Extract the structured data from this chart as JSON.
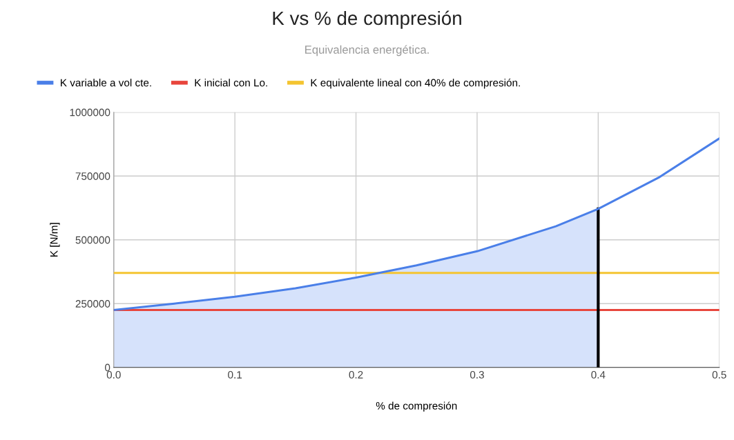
{
  "chart_data": {
    "type": "line",
    "title": "K vs % de compresión",
    "subtitle": "Equivalencia energética.",
    "xlabel": "% de compresión",
    "ylabel": "K [N/m]",
    "series": [
      {
        "name": "K variable a vol cte.",
        "color": "#4a7fe8",
        "x": [
          0,
          0.05,
          0.1,
          0.15,
          0.2,
          0.25,
          0.3,
          0.365,
          0.4,
          0.45,
          0.5
        ],
        "values": [
          225000,
          250000,
          277000,
          310000,
          352000,
          400000,
          455000,
          553000,
          621000,
          744000,
          897000
        ]
      },
      {
        "type": "area",
        "color": "#d6e2fb",
        "x": [
          0,
          0.05,
          0.1,
          0.15,
          0.2,
          0.25,
          0.3,
          0.365,
          0.4
        ],
        "values": [
          225000,
          250000,
          277000,
          310000,
          352000,
          400000,
          455000,
          553000,
          621000
        ]
      },
      {
        "name": "K inicial con Lo.",
        "color": "#e8453c",
        "x": [
          0,
          0.5
        ],
        "values": [
          225000,
          225000
        ]
      },
      {
        "name": "K equivalente lineal con 40% de compresión.",
        "color": "#f4c430",
        "x": [
          0,
          0.5
        ],
        "values": [
          370000,
          370000
        ]
      },
      {
        "color": "#000000",
        "x": [
          0.4,
          0.4
        ],
        "values": [
          0,
          621000
        ]
      }
    ],
    "xlim": [
      0,
      0.5
    ],
    "xticks": [
      {
        "value": 0,
        "label": "0.0"
      },
      0.1,
      0.2,
      0.3,
      0.4,
      0.5
    ],
    "ylim": [
      0,
      1000000
    ],
    "yticks": [
      0,
      250000,
      500000,
      750000,
      1000000
    ],
    "grid": true,
    "legend": "top left"
  }
}
